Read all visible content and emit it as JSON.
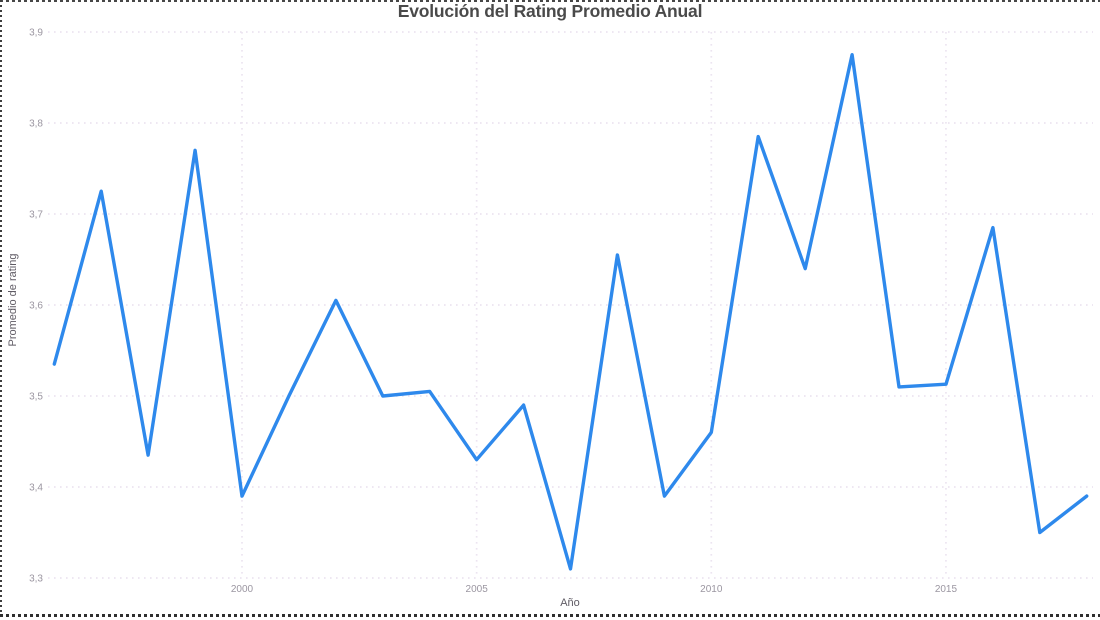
{
  "title": "Evolución del Rating Promedio Anual",
  "y_axis": {
    "title": "Promedio de rating",
    "tick_labels": [
      "3,9",
      "3,8",
      "3,7",
      "3,6",
      "3,5",
      "3,4",
      "3,3"
    ]
  },
  "x_axis": {
    "title": "Año",
    "tick_labels": [
      "2000",
      "2005",
      "2010",
      "2015"
    ]
  },
  "colors": {
    "line": "#2e89ec",
    "gridline": "#ece4f0",
    "tick_label": "#9b96a1",
    "axis_title": "#5f5b64",
    "title_text": "#4a4a4a",
    "focus_border": "#3d3d3d",
    "background": "#ffffff"
  },
  "chart_data": {
    "type": "line",
    "title": "Evolución del Rating Promedio Anual",
    "xlabel": "Año",
    "ylabel": "Promedio de rating",
    "x": [
      1996,
      1997,
      1998,
      1999,
      2000,
      2001,
      2002,
      2003,
      2004,
      2005,
      2006,
      2007,
      2008,
      2009,
      2010,
      2011,
      2012,
      2013,
      2014,
      2015,
      2016,
      2017,
      2018
    ],
    "y": [
      3.535,
      3.725,
      3.435,
      3.77,
      3.39,
      3.5,
      3.605,
      3.5,
      3.505,
      3.43,
      3.49,
      3.31,
      3.655,
      3.39,
      3.46,
      3.785,
      3.64,
      3.875,
      3.51,
      3.513,
      3.685,
      3.35,
      3.39
    ],
    "xticks": [
      2000,
      2005,
      2010,
      2015
    ],
    "yticks": [
      3.3,
      3.4,
      3.5,
      3.6,
      3.7,
      3.8,
      3.9
    ],
    "xlim": [
      1995.8,
      2018.2
    ],
    "ylim": [
      3.3,
      3.9
    ],
    "grid": true,
    "legend": false,
    "decimal_separator": ","
  }
}
